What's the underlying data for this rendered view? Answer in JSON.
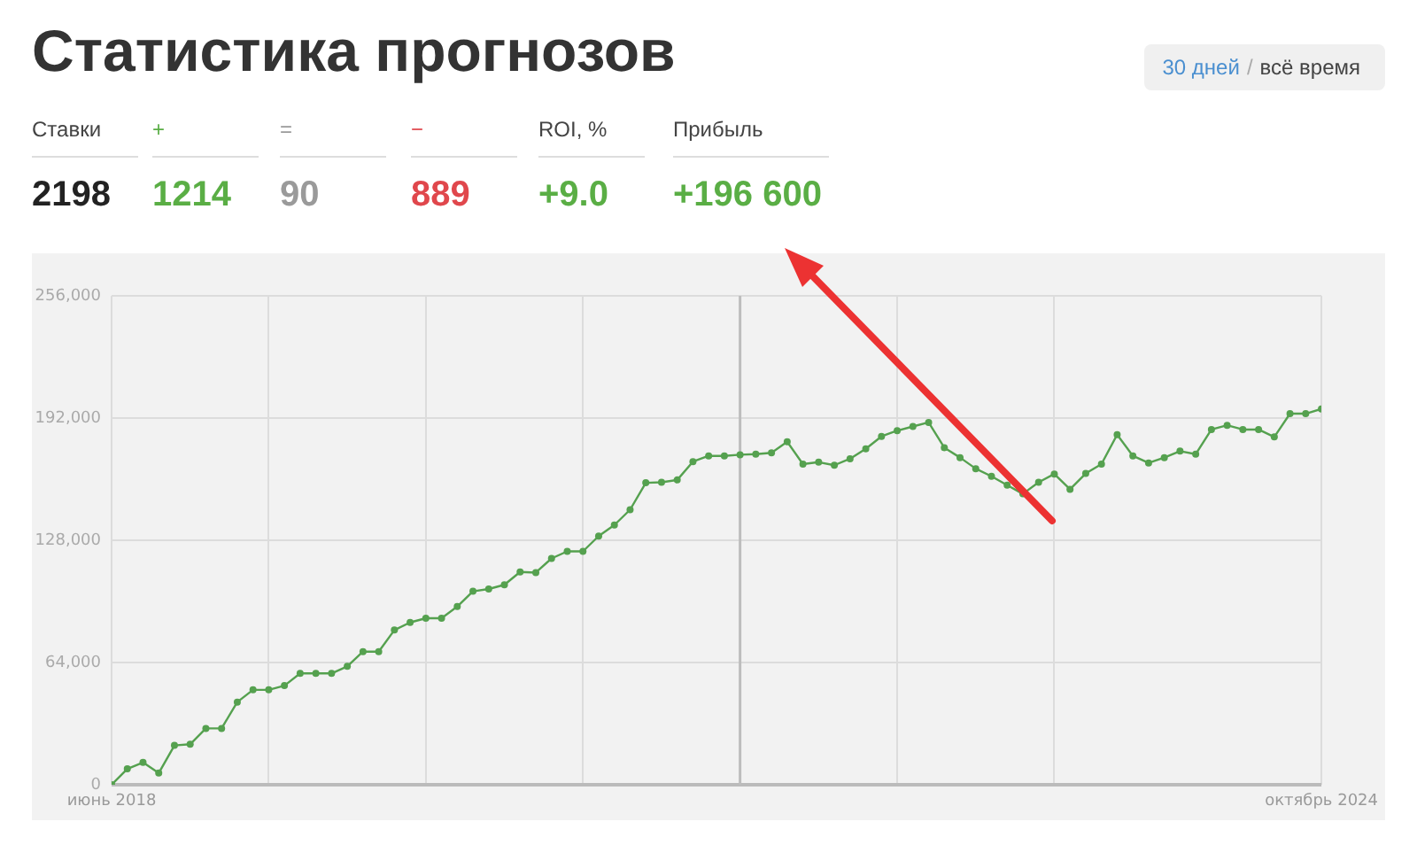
{
  "chart_data": [
    {
      "type": "other",
      "title": "Статистика прогнозов",
      "annotations": [
        "30 дней",
        "/",
        "всё время"
      ],
      "categories": [
        "Ставки",
        "+",
        "=",
        "−",
        "ROI, %",
        "Прибыль"
      ],
      "value_labels": [
        "2198",
        "1214",
        "90",
        "889",
        "+9.0",
        "+196 600"
      ],
      "colors": [
        "#222222",
        "#5aae45",
        "#9a9a9a",
        "#e0474c",
        "#5aae45",
        "#5aae45"
      ]
    },
    {
      "type": "line",
      "x": [
        "2018-06-05",
        "2018-07-05",
        "2018-08-04",
        "2018-09-03",
        "2018-10-03",
        "2018-11-02",
        "2018-12-02",
        "2019-01-01",
        "2019-01-31",
        "2019-03-02",
        "2019-04-01",
        "2019-05-01",
        "2019-05-31",
        "2019-06-30",
        "2019-07-30",
        "2019-08-29",
        "2019-09-28",
        "2019-10-28",
        "2019-11-27",
        "2019-12-27",
        "2020-01-26",
        "2020-02-25",
        "2020-03-26",
        "2020-04-25",
        "2020-05-25",
        "2020-06-24",
        "2020-07-24",
        "2020-08-23",
        "2020-09-22",
        "2020-10-22",
        "2020-11-21",
        "2020-12-21",
        "2021-01-20",
        "2021-02-19",
        "2021-03-21",
        "2021-04-20",
        "2021-05-20",
        "2021-06-19",
        "2021-07-19",
        "2021-08-18",
        "2021-09-17",
        "2021-10-17",
        "2021-11-16",
        "2021-12-16",
        "2022-01-15",
        "2022-02-14",
        "2022-03-16",
        "2022-04-15",
        "2022-05-15",
        "2022-06-14",
        "2022-07-14",
        "2022-08-13",
        "2022-09-12",
        "2022-10-12",
        "2022-11-11",
        "2022-12-11",
        "2023-01-10",
        "2023-02-09",
        "2023-03-11",
        "2023-04-10",
        "2023-05-10",
        "2023-06-09",
        "2023-07-09",
        "2023-08-08",
        "2023-09-07",
        "2023-10-07",
        "2023-11-06",
        "2023-12-06",
        "2024-01-05",
        "2024-02-04",
        "2024-03-05",
        "2024-04-04",
        "2024-05-04",
        "2024-06-03",
        "2024-07-03",
        "2024-08-02",
        "2024-09-01",
        "2024-10-01"
      ],
      "series": [
        {
          "color": "#55a14f",
          "values": [
            0,
            8300,
            11700,
            6100,
            20600,
            21200,
            29500,
            29500,
            43300,
            49700,
            49700,
            51900,
            58300,
            58300,
            58300,
            62000,
            69700,
            69700,
            81000,
            85000,
            87200,
            87200,
            93300,
            101300,
            102500,
            104700,
            111400,
            111100,
            118500,
            122200,
            122200,
            130200,
            136000,
            144000,
            158100,
            158400,
            159600,
            169200,
            172200,
            172200,
            172800,
            173100,
            173800,
            179600,
            167900,
            168900,
            167300,
            170700,
            175900,
            182400,
            185400,
            187600,
            189700,
            176500,
            171300,
            165500,
            161500,
            156900,
            152300,
            158400,
            162700,
            154700,
            163000,
            167900,
            183300,
            172200,
            168500,
            171300,
            174700,
            173100,
            186000,
            188200,
            186000,
            186000,
            182100,
            194300,
            194300,
            196800
          ]
        }
      ],
      "xlim": [
        "2018-06-05",
        "2024-10-01"
      ],
      "xticks": [
        {
          "value": "2018-06-05",
          "label": "июнь 2018"
        },
        {
          "value": "2019-04-01",
          "label": null
        },
        {
          "value": "2020-01-26",
          "label": null
        },
        {
          "value": "2020-11-21",
          "label": null
        },
        {
          "value": "2021-09-17",
          "label": null
        },
        {
          "value": "2022-07-14",
          "label": null
        },
        {
          "value": "2023-05-10",
          "label": null
        },
        {
          "value": "2024-10-01",
          "label": "октябрь 2024"
        }
      ],
      "ylim": [
        0,
        256000
      ],
      "yticks": [
        {
          "value": 0,
          "label": "0"
        },
        {
          "value": 64000,
          "label": "64,000"
        },
        {
          "value": 128000,
          "label": "128,000"
        },
        {
          "value": 192000,
          "label": "192,000"
        },
        {
          "value": 256000,
          "label": "256,000"
        }
      ],
      "ref_lines": [
        {
          "axis": "x",
          "value": "2021-09-17",
          "color": "#bdbdbd"
        }
      ],
      "grid": true,
      "legend": false,
      "marker": "circle",
      "line_style": "solid"
    }
  ]
}
